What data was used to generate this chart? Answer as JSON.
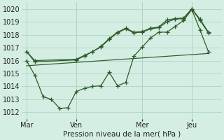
{
  "xlabel": "Pression niveau de la mer( hPa )",
  "bg_color": "#d4eee4",
  "grid_color": "#b0d4c0",
  "line_color": "#2d5a27",
  "ylim": [
    1011.5,
    1020.5
  ],
  "yticks": [
    1012,
    1013,
    1014,
    1015,
    1016,
    1017,
    1018,
    1019,
    1020
  ],
  "xtick_labels": [
    "Mar",
    "Ven",
    "Mer",
    "Jeu"
  ],
  "xtick_positions": [
    0,
    3,
    7,
    10
  ],
  "xlim": [
    -0.3,
    11.8
  ],
  "series1_x": [
    0,
    0.5,
    3,
    3.5,
    4,
    4.5,
    5,
    5.5,
    6,
    6.5,
    7,
    7.5,
    8,
    8.5,
    9,
    9.5,
    10,
    10.5,
    11
  ],
  "series1_y": [
    1016.7,
    1016.0,
    1016.1,
    1016.4,
    1016.7,
    1017.1,
    1017.7,
    1018.2,
    1018.5,
    1018.2,
    1018.25,
    1018.5,
    1018.6,
    1019.15,
    1019.25,
    1019.3,
    1020.0,
    1019.2,
    1018.2
  ],
  "series2_x": [
    0,
    0.5,
    3,
    3.5,
    4,
    4.5,
    5,
    5.5,
    6,
    6.5,
    7,
    7.5,
    8,
    8.5,
    9,
    9.5,
    10,
    10.5,
    11
  ],
  "series2_y": [
    1016.7,
    1015.9,
    1016.05,
    1016.35,
    1016.7,
    1017.05,
    1017.65,
    1018.15,
    1018.45,
    1018.15,
    1018.2,
    1018.45,
    1018.55,
    1019.0,
    1019.2,
    1019.25,
    1020.0,
    1019.1,
    1018.15
  ],
  "series3_x": [
    0,
    0.5,
    1,
    1.5,
    2,
    2.5,
    3,
    3.5,
    4,
    4.5,
    5,
    5.5,
    6,
    6.5,
    7,
    7.5,
    8,
    8.5,
    9,
    9.5,
    10,
    10.5,
    11
  ],
  "series3_y": [
    1016.0,
    1014.85,
    1013.2,
    1013.0,
    1012.3,
    1012.35,
    1013.6,
    1013.85,
    1014.0,
    1014.05,
    1015.1,
    1014.05,
    1014.3,
    1016.35,
    1017.05,
    1017.75,
    1018.2,
    1018.2,
    1018.65,
    1019.1,
    1019.95,
    1018.35,
    1016.7
  ],
  "series4_x": [
    0,
    11
  ],
  "series4_y": [
    1015.6,
    1016.55
  ]
}
